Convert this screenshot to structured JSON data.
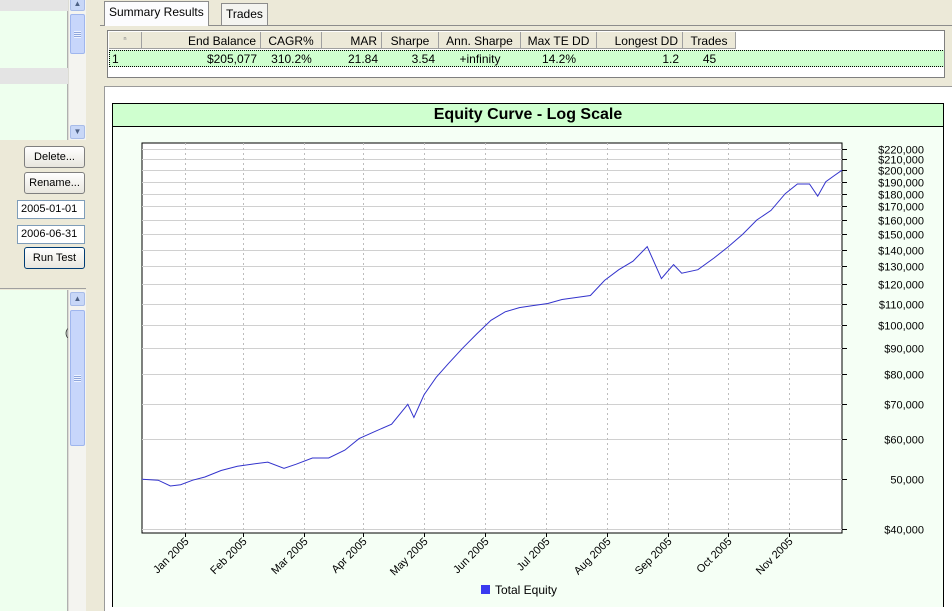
{
  "left_panel": {
    "delete_label": "Delete...",
    "rename_label": "Rename...",
    "start_date": "2005-01-01",
    "end_date": "2006-06-31",
    "run_label": "Run Test"
  },
  "tabs": [
    {
      "label": "Summary Results",
      "active": true
    },
    {
      "label": "Trades",
      "active": false
    }
  ],
  "results": {
    "columns": [
      "",
      "End Balance",
      "CAGR%",
      "MAR",
      "Sharpe",
      "Ann. Sharpe",
      "Max TE DD",
      "Longest DD",
      "Trades"
    ],
    "rows": [
      [
        "1",
        "$205,077",
        "310.2%",
        "21.84",
        "3.54",
        "+infinity",
        "14.2%",
        "1.2",
        "45"
      ]
    ]
  },
  "chart_data": {
    "type": "line",
    "title": "Equity Curve - Log Scale",
    "y_scale": "log",
    "ylim": [
      40000,
      220000
    ],
    "y_ticks": [
      "$40,000",
      "50,000",
      "$60,000",
      "$70,000",
      "$80,000",
      "$90,000",
      "$100,000",
      "$110,000",
      "$120,000",
      "$130,000",
      "$140,000",
      "$150,000",
      "$160,000",
      "$170,000",
      "$180,000",
      "$190,000",
      "$200,000",
      "$210,000",
      "$220,000"
    ],
    "x_ticks": [
      "Jan 2005",
      "Feb 2005",
      "Mar 2005",
      "Apr 2005",
      "May 2005",
      "Jun 2005",
      "Jul 2005",
      "Aug 2005",
      "Sep 2005",
      "Oct 2005",
      "Nov 2005"
    ],
    "grid": true,
    "legend_position": "bottom",
    "series": [
      {
        "name": "Total Equity",
        "color": "#3333cc",
        "x": [
          "2004-12-20",
          "2004-12-28",
          "2005-01-03",
          "2005-01-08",
          "2005-01-14",
          "2005-01-20",
          "2005-01-28",
          "2005-02-05",
          "2005-02-12",
          "2005-02-20",
          "2005-02-28",
          "2005-03-06",
          "2005-03-14",
          "2005-03-22",
          "2005-03-30",
          "2005-04-06",
          "2005-04-14",
          "2005-04-22",
          "2005-04-30",
          "2005-05-03",
          "2005-05-08",
          "2005-05-14",
          "2005-05-20",
          "2005-05-27",
          "2005-06-03",
          "2005-06-10",
          "2005-06-17",
          "2005-06-24",
          "2005-07-01",
          "2005-07-08",
          "2005-07-15",
          "2005-07-22",
          "2005-07-29",
          "2005-08-05",
          "2005-08-12",
          "2005-08-19",
          "2005-08-26",
          "2005-09-02",
          "2005-09-05",
          "2005-09-08",
          "2005-09-12",
          "2005-09-20",
          "2005-09-28",
          "2005-10-05",
          "2005-10-12",
          "2005-10-19",
          "2005-10-26",
          "2005-11-02",
          "2005-11-08",
          "2005-11-14",
          "2005-11-18",
          "2005-11-22",
          "2005-11-26",
          "2005-11-30"
        ],
        "values": [
          50000,
          49800,
          48500,
          48800,
          49800,
          50500,
          52000,
          53000,
          53500,
          54000,
          52500,
          53500,
          55000,
          55000,
          57000,
          60000,
          62000,
          64000,
          70000,
          66000,
          73000,
          79000,
          84000,
          90000,
          96000,
          102000,
          106000,
          108000,
          109000,
          110000,
          112000,
          113000,
          114000,
          122000,
          128000,
          133000,
          142000,
          123000,
          127000,
          131000,
          126000,
          128000,
          135000,
          142000,
          150000,
          160000,
          167000,
          180000,
          188000,
          188000,
          178000,
          190000,
          195000,
          200000
        ]
      }
    ]
  }
}
